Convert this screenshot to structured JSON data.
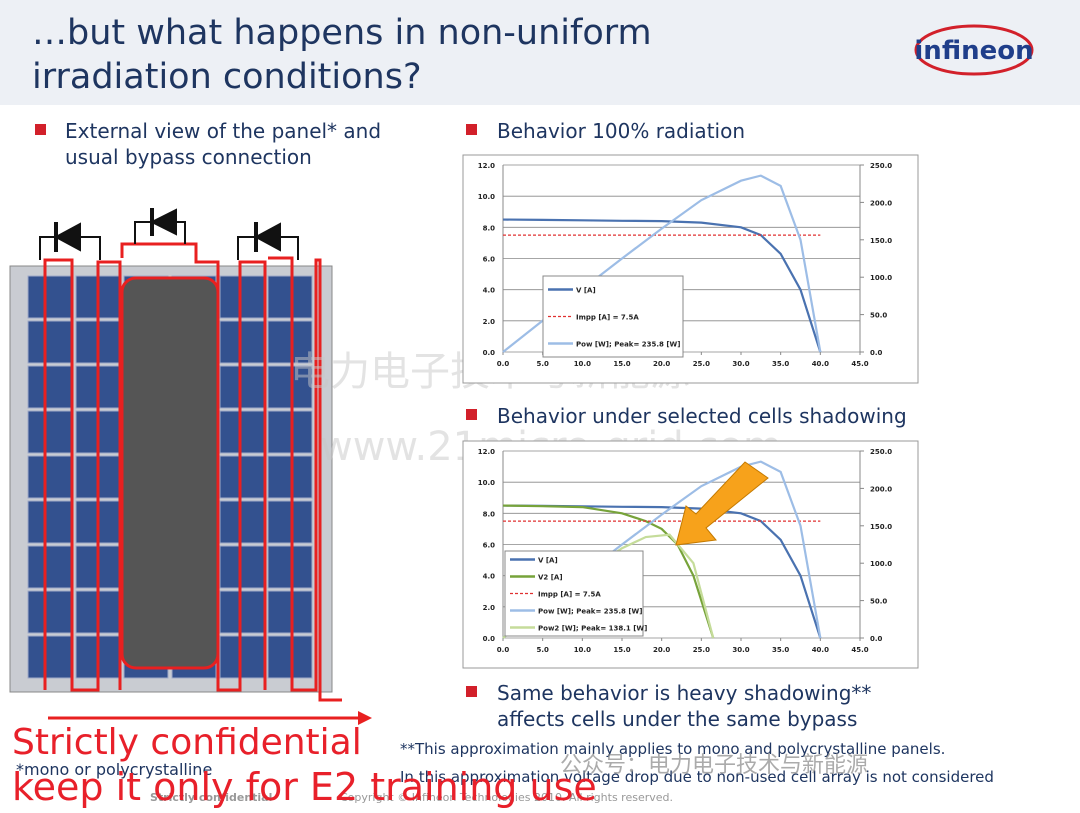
{
  "title": [
    "…but what happens in non-uniform",
    "irradiation conditions?"
  ],
  "logo": "infineon",
  "left_bullet": [
    "External view of the panel* and",
    "usual bypass connection"
  ],
  "bullets": [
    "Behavior 100% radiation",
    "Behavior under selected cells shadowing"
  ],
  "bottom_bullet": [
    "Same behavior is heavy shadowing**",
    "affects cells under the same bypass"
  ],
  "footnotes": [
    "*mono or polycrystalline",
    "**This approximation mainly applies to mono and polycrystalline panels.",
    "In this approximation voltage drop due to non-used cell array is not considered"
  ],
  "footer": [
    "Strictly confidential",
    "Copyright © Infineon Technologies 2010. All rights reserved."
  ],
  "overlay": [
    "Strictly confidential",
    "keep it only for E2 training use"
  ],
  "watermarks": [
    "电力电子技术与新能源",
    "www.21micro-grid.com",
    "公众号：电力电子技术与新能源"
  ],
  "chart_data": [
    {
      "type": "line",
      "xlim": [
        0,
        45
      ],
      "xticks": [
        {
          "value": 0,
          "label": "0.0"
        },
        {
          "value": 5,
          "label": "5.0"
        },
        {
          "value": 10,
          "label": "10.0"
        },
        {
          "value": 15,
          "label": "15.0"
        },
        {
          "value": 20,
          "label": "20.0"
        },
        {
          "value": 25,
          "label": "25.0"
        },
        {
          "value": 30,
          "label": "30.0"
        },
        {
          "value": 35,
          "label": "35.0"
        },
        {
          "value": 40,
          "label": "40.0"
        },
        {
          "value": 45,
          "label": "45.0"
        }
      ],
      "ylim": [
        0,
        12
      ],
      "yticks": [
        {
          "value": 0,
          "label": "0.0"
        },
        {
          "value": 2,
          "label": "2.0"
        },
        {
          "value": 4,
          "label": "4.0"
        },
        {
          "value": 6,
          "label": "6.0"
        },
        {
          "value": 8,
          "label": "8.0"
        },
        {
          "value": 10,
          "label": "10.0"
        },
        {
          "value": 12,
          "label": "12.0"
        }
      ],
      "y2lim": [
        0,
        250
      ],
      "y2ticks": [
        {
          "value": 0,
          "label": "0.0"
        },
        {
          "value": 50,
          "label": "50.0"
        },
        {
          "value": 100,
          "label": "100.0"
        },
        {
          "value": 150,
          "label": "150.0"
        },
        {
          "value": 200,
          "label": "200.0"
        },
        {
          "value": 250,
          "label": "250.0"
        }
      ],
      "grid": true,
      "series": [
        {
          "name": "V [A]",
          "color": "#4a72b0",
          "x": [
            0,
            5,
            10,
            15,
            20,
            25,
            30,
            32.5,
            35,
            37.5,
            40
          ],
          "values": [
            8.5,
            8.48,
            8.45,
            8.42,
            8.4,
            8.3,
            8.0,
            7.5,
            6.3,
            4.0,
            0
          ]
        },
        {
          "name": "Impp [A] = 7.5A",
          "color": "#e03030",
          "dash": true,
          "x": [
            0,
            40
          ],
          "values": [
            7.5,
            7.5
          ]
        },
        {
          "name": "Pow [W]; Peak= 235.8 [W]",
          "color": "#9dbde6",
          "axis": "y2",
          "x": [
            0,
            5,
            10,
            15,
            20,
            25,
            30,
            32.5,
            35,
            37.5,
            40
          ],
          "values": [
            0,
            42,
            84,
            125,
            165,
            203,
            229,
            235.8,
            222,
            150,
            0
          ]
        }
      ]
    },
    {
      "type": "line",
      "xlim": [
        0,
        45
      ],
      "xticks": [
        {
          "value": 0,
          "label": "0.0"
        },
        {
          "value": 5,
          "label": "5.0"
        },
        {
          "value": 10,
          "label": "10.0"
        },
        {
          "value": 15,
          "label": "15.0"
        },
        {
          "value": 20,
          "label": "20.0"
        },
        {
          "value": 25,
          "label": "25.0"
        },
        {
          "value": 30,
          "label": "30.0"
        },
        {
          "value": 35,
          "label": "35.0"
        },
        {
          "value": 40,
          "label": "40.0"
        },
        {
          "value": 45,
          "label": "45.0"
        }
      ],
      "ylim": [
        0,
        12
      ],
      "yticks": [
        {
          "value": 0,
          "label": "0.0"
        },
        {
          "value": 2,
          "label": "2.0"
        },
        {
          "value": 4,
          "label": "4.0"
        },
        {
          "value": 6,
          "label": "6.0"
        },
        {
          "value": 8,
          "label": "8.0"
        },
        {
          "value": 10,
          "label": "10.0"
        },
        {
          "value": 12,
          "label": "12.0"
        }
      ],
      "y2lim": [
        0,
        250
      ],
      "y2ticks": [
        {
          "value": 0,
          "label": "0.0"
        },
        {
          "value": 50,
          "label": "50.0"
        },
        {
          "value": 100,
          "label": "100.0"
        },
        {
          "value": 150,
          "label": "150.0"
        },
        {
          "value": 200,
          "label": "200.0"
        },
        {
          "value": 250,
          "label": "250.0"
        }
      ],
      "grid": true,
      "series": [
        {
          "name": "V [A]",
          "color": "#4a72b0",
          "x": [
            0,
            5,
            10,
            15,
            20,
            25,
            30,
            32.5,
            35,
            37.5,
            40
          ],
          "values": [
            8.5,
            8.48,
            8.45,
            8.42,
            8.4,
            8.3,
            8.0,
            7.5,
            6.3,
            4.0,
            0
          ]
        },
        {
          "name": "V2 [A]",
          "color": "#77a33a",
          "x": [
            0,
            5,
            10,
            15,
            18,
            20,
            22,
            24,
            26.5
          ],
          "values": [
            8.5,
            8.46,
            8.4,
            8.0,
            7.5,
            7.0,
            6.0,
            4.0,
            0
          ]
        },
        {
          "name": "Impp [A] = 7.5A",
          "color": "#e03030",
          "dash": true,
          "x": [
            0,
            40
          ],
          "values": [
            7.5,
            7.5
          ]
        },
        {
          "name": "Pow [W]; Peak= 235.8 [W]",
          "color": "#9dbde6",
          "axis": "y2",
          "x": [
            0,
            5,
            10,
            15,
            20,
            25,
            30,
            32.5,
            35,
            37.5,
            40
          ],
          "values": [
            0,
            42,
            84,
            125,
            165,
            203,
            229,
            235.8,
            222,
            150,
            0
          ]
        },
        {
          "name": "Pow2 [W]; Peak= 138.1 [W]",
          "color": "#c5dc9a",
          "axis": "y2",
          "x": [
            0,
            5,
            10,
            15,
            18,
            21,
            24,
            26.5
          ],
          "values": [
            0,
            42,
            84,
            120,
            135,
            138.1,
            100,
            0
          ]
        }
      ]
    }
  ]
}
